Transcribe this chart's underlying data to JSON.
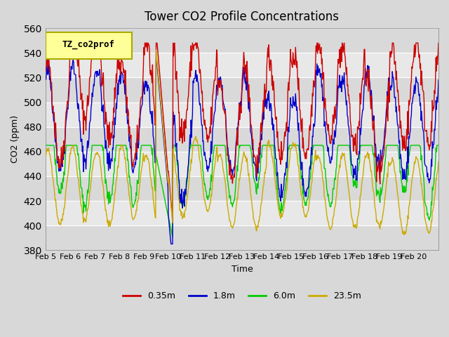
{
  "title": "Tower CO2 Profile Concentrations",
  "xlabel": "Time",
  "ylabel": "CO2 (ppm)",
  "ylim": [
    380,
    560
  ],
  "yticks": [
    380,
    400,
    420,
    440,
    460,
    480,
    500,
    520,
    540,
    560
  ],
  "legend_label": "TZ_co2prof",
  "series_labels": [
    "0.35m",
    "1.8m",
    "6.0m",
    "23.5m"
  ],
  "series_colors": [
    "#cc0000",
    "#0000cc",
    "#00cc00",
    "#ccaa00"
  ],
  "xtick_labels": [
    "Feb 5",
    "Feb 6",
    "Feb 7",
    "Feb 8",
    "Feb 9",
    "Feb 10",
    "Feb 11",
    "Feb 12",
    "Feb 13",
    "Feb 14",
    "Feb 15",
    "Feb 16",
    "Feb 17",
    "Feb 18",
    "Feb 19",
    "Feb 20"
  ],
  "bg_color": "#e8e8e8",
  "plot_bg": "#f0f0f0",
  "linewidth": 1.0
}
